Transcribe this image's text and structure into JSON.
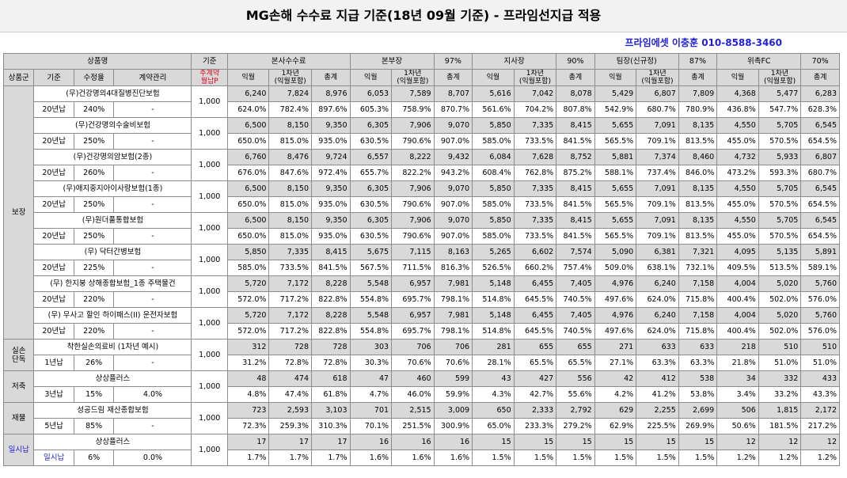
{
  "title": "MG손해 수수료 지급 기준(18년 09월 기준) - 프라임선지급 적용",
  "contact": "프라임에셋 이충훈 010-8588-3460",
  "header": {
    "product_label": "상품명",
    "basis_label": "기준",
    "basis_sub": "주계약\n월납P",
    "groups": [
      {
        "name": "본사수수료",
        "rate": ""
      },
      {
        "name": "본부장",
        "rate": "97%"
      },
      {
        "name": "지사장",
        "rate": "90%"
      },
      {
        "name": "팀장(신규정)",
        "rate": "87%"
      },
      {
        "name": "위촉FC",
        "rate": "70%"
      }
    ],
    "sub_cols": [
      "상품군",
      "기준",
      "수정율",
      "계약관리"
    ],
    "metric_cols": [
      "익월",
      "1차년\n(익월포함)",
      "총계"
    ]
  },
  "categories": [
    {
      "name": "보장"
    },
    {
      "name": "실손\n단독"
    },
    {
      "name": "저축"
    },
    {
      "name": "재물"
    },
    {
      "name": "일시납"
    }
  ],
  "rows": [
    {
      "cat": 0,
      "product": "(무)건강명의4대질병진단보험",
      "term": "20년납",
      "rate": "240%",
      "mgmt": "-",
      "basis": "1,000",
      "amt": [
        "6,240",
        "7,824",
        "8,976",
        "6,053",
        "7,589",
        "8,707",
        "5,616",
        "7,042",
        "8,078",
        "5,429",
        "6,807",
        "7,809",
        "4,368",
        "5,477",
        "6,283"
      ],
      "pct": [
        "624.0%",
        "782.4%",
        "897.6%",
        "605.3%",
        "758.9%",
        "870.7%",
        "561.6%",
        "704.2%",
        "807.8%",
        "542.9%",
        "680.7%",
        "780.9%",
        "436.8%",
        "547.7%",
        "628.3%"
      ]
    },
    {
      "cat": 0,
      "product": "(무)건강명의수술비보험",
      "term": "20년납",
      "rate": "250%",
      "mgmt": "-",
      "basis": "1,000",
      "amt": [
        "6,500",
        "8,150",
        "9,350",
        "6,305",
        "7,906",
        "9,070",
        "5,850",
        "7,335",
        "8,415",
        "5,655",
        "7,091",
        "8,135",
        "4,550",
        "5,705",
        "6,545"
      ],
      "pct": [
        "650.0%",
        "815.0%",
        "935.0%",
        "630.5%",
        "790.6%",
        "907.0%",
        "585.0%",
        "733.5%",
        "841.5%",
        "565.5%",
        "709.1%",
        "813.5%",
        "455.0%",
        "570.5%",
        "654.5%"
      ]
    },
    {
      "cat": 0,
      "product": "(무)건강명의암보험(2종)",
      "term": "20년납",
      "rate": "260%",
      "mgmt": "-",
      "basis": "1,000",
      "amt": [
        "6,760",
        "8,476",
        "9,724",
        "6,557",
        "8,222",
        "9,432",
        "6,084",
        "7,628",
        "8,752",
        "5,881",
        "7,374",
        "8,460",
        "4,732",
        "5,933",
        "6,807"
      ],
      "pct": [
        "676.0%",
        "847.6%",
        "972.4%",
        "655.7%",
        "822.2%",
        "943.2%",
        "608.4%",
        "762.8%",
        "875.2%",
        "588.1%",
        "737.4%",
        "846.0%",
        "473.2%",
        "593.3%",
        "680.7%"
      ]
    },
    {
      "cat": 0,
      "product": "(무)애지중지아이사랑보험(1종)",
      "term": "20년납",
      "rate": "250%",
      "mgmt": "-",
      "basis": "1,000",
      "amt": [
        "6,500",
        "8,150",
        "9,350",
        "6,305",
        "7,906",
        "9,070",
        "5,850",
        "7,335",
        "8,415",
        "5,655",
        "7,091",
        "8,135",
        "4,550",
        "5,705",
        "6,545"
      ],
      "pct": [
        "650.0%",
        "815.0%",
        "935.0%",
        "630.5%",
        "790.6%",
        "907.0%",
        "585.0%",
        "733.5%",
        "841.5%",
        "565.5%",
        "709.1%",
        "813.5%",
        "455.0%",
        "570.5%",
        "654.5%"
      ]
    },
    {
      "cat": 0,
      "product": "(무)원더풀통합보험",
      "term": "20년납",
      "rate": "250%",
      "mgmt": "-",
      "basis": "1,000",
      "amt": [
        "6,500",
        "8,150",
        "9,350",
        "6,305",
        "7,906",
        "9,070",
        "5,850",
        "7,335",
        "8,415",
        "5,655",
        "7,091",
        "8,135",
        "4,550",
        "5,705",
        "6,545"
      ],
      "pct": [
        "650.0%",
        "815.0%",
        "935.0%",
        "630.5%",
        "790.6%",
        "907.0%",
        "585.0%",
        "733.5%",
        "841.5%",
        "565.5%",
        "709.1%",
        "813.5%",
        "455.0%",
        "570.5%",
        "654.5%"
      ]
    },
    {
      "cat": 0,
      "product": "(무) 닥터간병보험",
      "term": "20년납",
      "rate": "225%",
      "mgmt": "-",
      "basis": "1,000",
      "amt": [
        "5,850",
        "7,335",
        "8,415",
        "5,675",
        "7,115",
        "8,163",
        "5,265",
        "6,602",
        "7,574",
        "5,090",
        "6,381",
        "7,321",
        "4,095",
        "5,135",
        "5,891"
      ],
      "pct": [
        "585.0%",
        "733.5%",
        "841.5%",
        "567.5%",
        "711.5%",
        "816.3%",
        "526.5%",
        "660.2%",
        "757.4%",
        "509.0%",
        "638.1%",
        "732.1%",
        "409.5%",
        "513.5%",
        "589.1%"
      ]
    },
    {
      "cat": 0,
      "product": "(무) 한지붕 상해종합보험_1종 주택물건",
      "term": "20년납",
      "rate": "220%",
      "mgmt": "-",
      "basis": "1,000",
      "amt": [
        "5,720",
        "7,172",
        "8,228",
        "5,548",
        "6,957",
        "7,981",
        "5,148",
        "6,455",
        "7,405",
        "4,976",
        "6,240",
        "7,158",
        "4,004",
        "5,020",
        "5,760"
      ],
      "pct": [
        "572.0%",
        "717.2%",
        "822.8%",
        "554.8%",
        "695.7%",
        "798.1%",
        "514.8%",
        "645.5%",
        "740.5%",
        "497.6%",
        "624.0%",
        "715.8%",
        "400.4%",
        "502.0%",
        "576.0%"
      ]
    },
    {
      "cat": 0,
      "product": "(무) 무사고 할인 하이패스(II) 운전자보험",
      "term": "20년납",
      "rate": "220%",
      "mgmt": "-",
      "basis": "1,000",
      "amt": [
        "5,720",
        "7,172",
        "8,228",
        "5,548",
        "6,957",
        "7,981",
        "5,148",
        "6,455",
        "7,405",
        "4,976",
        "6,240",
        "7,158",
        "4,004",
        "5,020",
        "5,760"
      ],
      "pct": [
        "572.0%",
        "717.2%",
        "822.8%",
        "554.8%",
        "695.7%",
        "798.1%",
        "514.8%",
        "645.5%",
        "740.5%",
        "497.6%",
        "624.0%",
        "715.8%",
        "400.4%",
        "502.0%",
        "576.0%"
      ]
    },
    {
      "cat": 1,
      "product": "착한실손의료비 (1차년 예시)",
      "term": "1년납",
      "rate": "26%",
      "mgmt": "-",
      "basis": "1,000",
      "amt": [
        "312",
        "728",
        "728",
        "303",
        "706",
        "706",
        "281",
        "655",
        "655",
        "271",
        "633",
        "633",
        "218",
        "510",
        "510"
      ],
      "pct": [
        "31.2%",
        "72.8%",
        "72.8%",
        "30.3%",
        "70.6%",
        "70.6%",
        "28.1%",
        "65.5%",
        "65.5%",
        "27.1%",
        "63.3%",
        "63.3%",
        "21.8%",
        "51.0%",
        "51.0%"
      ]
    },
    {
      "cat": 2,
      "product": "상상플러스",
      "term": "3년납",
      "rate": "15%",
      "mgmt": "4.0%",
      "basis": "1,000",
      "amt": [
        "48",
        "474",
        "618",
        "47",
        "460",
        "599",
        "43",
        "427",
        "556",
        "42",
        "412",
        "538",
        "34",
        "332",
        "433"
      ],
      "pct": [
        "4.8%",
        "47.4%",
        "61.8%",
        "4.7%",
        "46.0%",
        "59.9%",
        "4.3%",
        "42.7%",
        "55.6%",
        "4.2%",
        "41.2%",
        "53.8%",
        "3.4%",
        "33.2%",
        "43.3%"
      ]
    },
    {
      "cat": 3,
      "product": "성공드림 재산종합보험",
      "term": "5년납",
      "rate": "85%",
      "mgmt": "-",
      "basis": "1,000",
      "amt": [
        "723",
        "2,593",
        "3,103",
        "701",
        "2,515",
        "3,009",
        "650",
        "2,333",
        "2,792",
        "629",
        "2,255",
        "2,699",
        "506",
        "1,815",
        "2,172"
      ],
      "pct": [
        "72.3%",
        "259.3%",
        "310.3%",
        "70.1%",
        "251.5%",
        "300.9%",
        "65.0%",
        "233.3%",
        "279.2%",
        "62.9%",
        "225.5%",
        "269.9%",
        "50.6%",
        "181.5%",
        "217.2%"
      ]
    },
    {
      "cat": 4,
      "product": "상상플러스",
      "term": "일시납",
      "rate": "6%",
      "mgmt": "0.0%",
      "basis": "1,000",
      "amt": [
        "17",
        "17",
        "17",
        "16",
        "16",
        "16",
        "15",
        "15",
        "15",
        "15",
        "15",
        "15",
        "12",
        "12",
        "12"
      ],
      "pct": [
        "1.7%",
        "1.7%",
        "1.7%",
        "1.6%",
        "1.6%",
        "1.6%",
        "1.5%",
        "1.5%",
        "1.5%",
        "1.5%",
        "1.5%",
        "1.5%",
        "1.2%",
        "1.2%",
        "1.2%"
      ]
    }
  ],
  "colors": {
    "header_bg": "#d9d9d9",
    "accent_blue": "#1f1fd6",
    "accent_red": "#e0001b"
  }
}
